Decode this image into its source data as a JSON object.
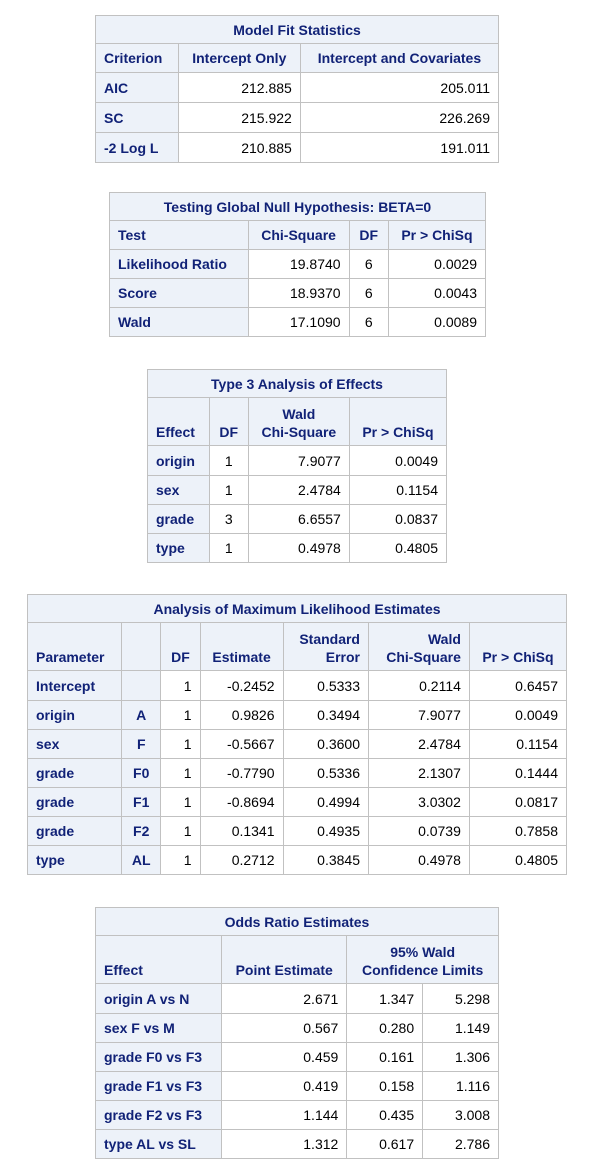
{
  "model_fit": {
    "caption": "Model Fit Statistics",
    "headers": [
      "Criterion",
      "Intercept Only",
      "Intercept and Covariates"
    ],
    "rows": [
      [
        "AIC",
        "212.885",
        "205.011"
      ],
      [
        "SC",
        "215.922",
        "226.269"
      ],
      [
        "-2 Log L",
        "210.885",
        "191.011"
      ]
    ]
  },
  "global_null": {
    "caption": "Testing Global Null Hypothesis: BETA=0",
    "headers": [
      "Test",
      "Chi-Square",
      "DF",
      "Pr > ChiSq"
    ],
    "rows": [
      [
        "Likelihood Ratio",
        "19.8740",
        "6",
        "0.0029"
      ],
      [
        "Score",
        "18.9370",
        "6",
        "0.0043"
      ],
      [
        "Wald",
        "17.1090",
        "6",
        "0.0089"
      ]
    ]
  },
  "type3": {
    "caption": "Type 3 Analysis of Effects",
    "headers": [
      "Effect",
      "DF",
      "Wald",
      "Chi-Square",
      "Pr > ChiSq"
    ],
    "rows": [
      [
        "origin",
        "1",
        "7.9077",
        "0.0049"
      ],
      [
        "sex",
        "1",
        "2.4784",
        "0.1154"
      ],
      [
        "grade",
        "3",
        "6.6557",
        "0.0837"
      ],
      [
        "type",
        "1",
        "0.4978",
        "0.4805"
      ]
    ]
  },
  "mle": {
    "caption": "Analysis of Maximum Likelihood Estimates",
    "headers": [
      "Parameter",
      "",
      "DF",
      "Estimate",
      "Standard",
      "Error",
      "Wald",
      "Chi-Square",
      "Pr > ChiSq"
    ],
    "rows": [
      [
        "Intercept",
        "",
        "1",
        "-0.2452",
        "0.5333",
        "0.2114",
        "0.6457"
      ],
      [
        "origin",
        "A",
        "1",
        "0.9826",
        "0.3494",
        "7.9077",
        "0.0049"
      ],
      [
        "sex",
        "F",
        "1",
        "-0.5667",
        "0.3600",
        "2.4784",
        "0.1154"
      ],
      [
        "grade",
        "F0",
        "1",
        "-0.7790",
        "0.5336",
        "2.1307",
        "0.1444"
      ],
      [
        "grade",
        "F1",
        "1",
        "-0.8694",
        "0.4994",
        "3.0302",
        "0.0817"
      ],
      [
        "grade",
        "F2",
        "1",
        "0.1341",
        "0.4935",
        "0.0739",
        "0.7858"
      ],
      [
        "type",
        "AL",
        "1",
        "0.2712",
        "0.3845",
        "0.4978",
        "0.4805"
      ]
    ]
  },
  "odds": {
    "caption": "Odds Ratio Estimates",
    "headers": [
      "Effect",
      "Point Estimate",
      "95% Wald",
      "Confidence Limits"
    ],
    "rows": [
      [
        "origin A vs N",
        "2.671",
        "1.347",
        "5.298"
      ],
      [
        "sex F vs M",
        "0.567",
        "0.280",
        "1.149"
      ],
      [
        "grade F0 vs F3",
        "0.459",
        "0.161",
        "1.306"
      ],
      [
        "grade F1 vs F3",
        "0.419",
        "0.158",
        "1.116"
      ],
      [
        "grade F2 vs F3",
        "1.144",
        "0.435",
        "3.008"
      ],
      [
        "type AL vs SL",
        "1.312",
        "0.617",
        "2.786"
      ]
    ]
  }
}
